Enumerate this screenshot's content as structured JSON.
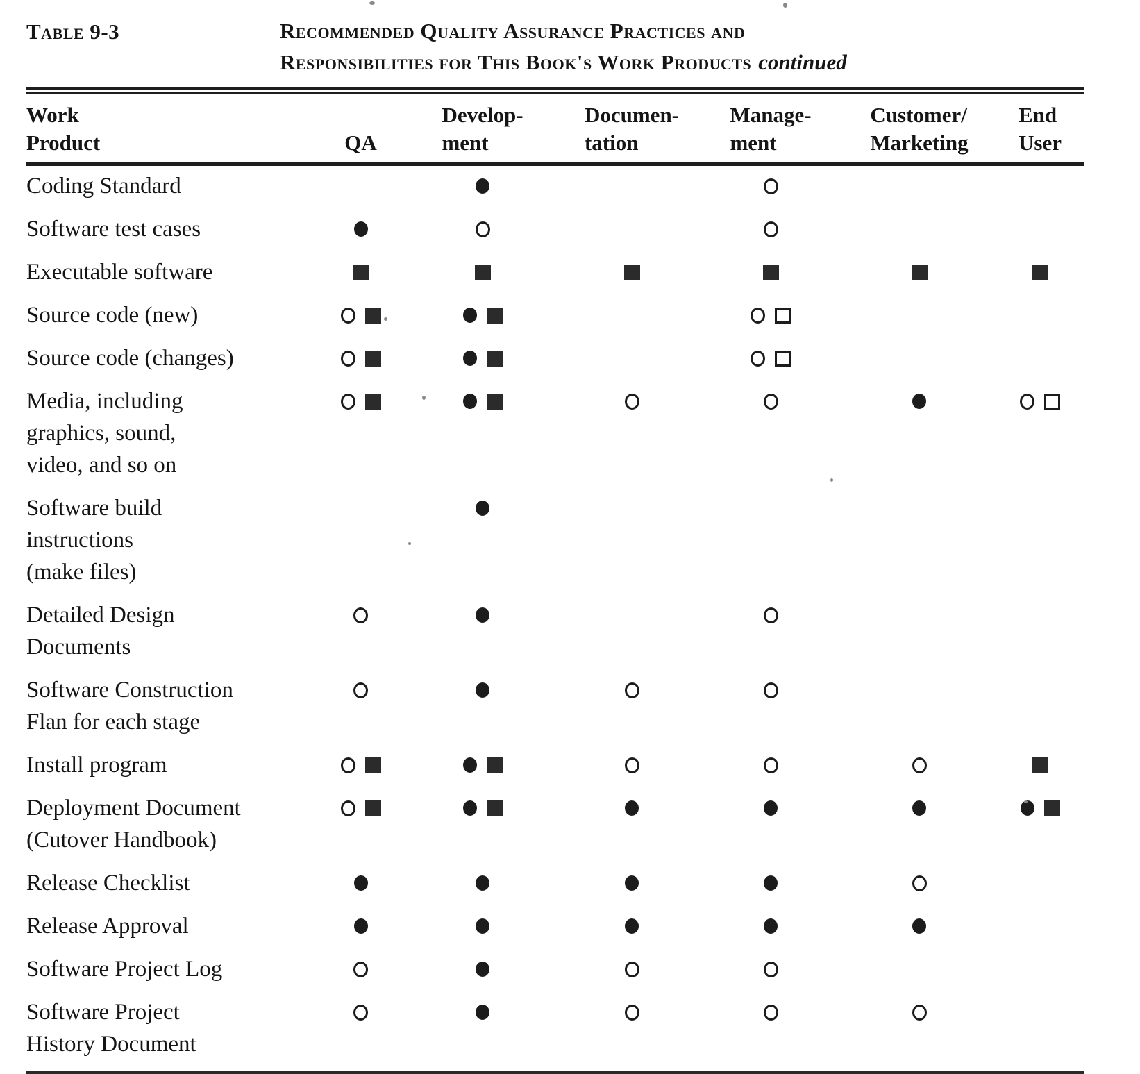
{
  "page": {
    "table_label": "Table 9-3",
    "title_line1": "Recommended Quality Assurance Practices and",
    "title_line2": "Responsibilities for This Book's Work Products",
    "continued_note": "continued"
  },
  "header": {
    "columns": [
      {
        "id": "product",
        "line1": "Work",
        "line2": "Product"
      },
      {
        "id": "qa",
        "line1": "",
        "line2": "QA"
      },
      {
        "id": "development",
        "line1": "Develop-",
        "line2": "ment"
      },
      {
        "id": "documentation",
        "line1": "Documen-",
        "line2": "tation"
      },
      {
        "id": "management",
        "line1": "Manage-",
        "line2": "ment"
      },
      {
        "id": "customer_marketing",
        "line1": "Customer/",
        "line2": "Marketing"
      },
      {
        "id": "end_user",
        "line1": "End",
        "line2": "User"
      }
    ]
  },
  "symbols": {
    "filled-circle": "●",
    "open-circle": "○",
    "filled-square": "■",
    "open-square": "□"
  },
  "rows": [
    {
      "product_lines": [
        "Coding Standard"
      ],
      "cells": {
        "qa": [],
        "development": [
          "filled-circle"
        ],
        "documentation": [],
        "management": [
          "open-circle"
        ],
        "customer_marketing": [],
        "end_user": []
      }
    },
    {
      "product_lines": [
        "Software test cases"
      ],
      "cells": {
        "qa": [
          "filled-circle"
        ],
        "development": [
          "open-circle"
        ],
        "documentation": [],
        "management": [
          "open-circle"
        ],
        "customer_marketing": [],
        "end_user": []
      }
    },
    {
      "product_lines": [
        "Executable software"
      ],
      "cells": {
        "qa": [
          "filled-square"
        ],
        "development": [
          "filled-square"
        ],
        "documentation": [
          "filled-square"
        ],
        "management": [
          "filled-square"
        ],
        "customer_marketing": [
          "filled-square"
        ],
        "end_user": [
          "filled-square"
        ]
      }
    },
    {
      "product_lines": [
        "Source code (new)"
      ],
      "cells": {
        "qa": [
          "open-circle",
          "filled-square"
        ],
        "development": [
          "filled-circle",
          "filled-square"
        ],
        "documentation": [],
        "management": [
          "open-circle",
          "open-square"
        ],
        "customer_marketing": [],
        "end_user": []
      }
    },
    {
      "product_lines": [
        "Source code (changes)"
      ],
      "cells": {
        "qa": [
          "open-circle",
          "filled-square"
        ],
        "development": [
          "filled-circle",
          "filled-square"
        ],
        "documentation": [],
        "management": [
          "open-circle",
          "open-square"
        ],
        "customer_marketing": [],
        "end_user": []
      }
    },
    {
      "product_lines": [
        "Media, including",
        "graphics, sound,",
        "video, and so on"
      ],
      "cells": {
        "qa": [
          "open-circle",
          "filled-square"
        ],
        "development": [
          "filled-circle",
          "filled-square"
        ],
        "documentation": [
          "open-circle"
        ],
        "management": [
          "open-circle"
        ],
        "customer_marketing": [
          "filled-circle"
        ],
        "end_user": [
          "open-circle",
          "open-square"
        ]
      }
    },
    {
      "product_lines": [
        "Software build",
        "instructions",
        "(make files)"
      ],
      "cells": {
        "qa": [],
        "development": [
          "filled-circle"
        ],
        "documentation": [],
        "management": [],
        "customer_marketing": [],
        "end_user": []
      }
    },
    {
      "product_lines": [
        "Detailed Design",
        "Documents"
      ],
      "cells": {
        "qa": [
          "open-circle"
        ],
        "development": [
          "filled-circle"
        ],
        "documentation": [],
        "management": [
          "open-circle"
        ],
        "customer_marketing": [],
        "end_user": []
      }
    },
    {
      "product_lines": [
        "Software Construction",
        "Flan for each stage"
      ],
      "cells": {
        "qa": [
          "open-circle"
        ],
        "development": [
          "filled-circle"
        ],
        "documentation": [
          "open-circle"
        ],
        "management": [
          "open-circle"
        ],
        "customer_marketing": [],
        "end_user": []
      }
    },
    {
      "product_lines": [
        "Install program"
      ],
      "cells": {
        "qa": [
          "open-circle",
          "filled-square"
        ],
        "development": [
          "filled-circle",
          "filled-square"
        ],
        "documentation": [
          "open-circle"
        ],
        "management": [
          "open-circle"
        ],
        "customer_marketing": [
          "open-circle"
        ],
        "end_user": [
          "filled-square"
        ]
      }
    },
    {
      "product_lines": [
        "Deployment Document",
        "(Cutover Handbook)"
      ],
      "cells": {
        "qa": [
          "open-circle",
          "filled-square"
        ],
        "development": [
          "filled-circle",
          "filled-square"
        ],
        "documentation": [
          "filled-circle"
        ],
        "management": [
          "filled-circle"
        ],
        "customer_marketing": [
          "filled-circle"
        ],
        "end_user": [
          "filled-circle",
          "filled-square"
        ]
      }
    },
    {
      "product_lines": [
        "Release Checklist"
      ],
      "cells": {
        "qa": [
          "filled-circle"
        ],
        "development": [
          "filled-circle"
        ],
        "documentation": [
          "filled-circle"
        ],
        "management": [
          "filled-circle"
        ],
        "customer_marketing": [
          "open-circle"
        ],
        "end_user": []
      }
    },
    {
      "product_lines": [
        "Release Approval"
      ],
      "cells": {
        "qa": [
          "filled-circle"
        ],
        "development": [
          "filled-circle"
        ],
        "documentation": [
          "filled-circle"
        ],
        "management": [
          "filled-circle"
        ],
        "customer_marketing": [
          "filled-circle"
        ],
        "end_user": []
      }
    },
    {
      "product_lines": [
        "Software Project Log"
      ],
      "cells": {
        "qa": [
          "open-circle"
        ],
        "development": [
          "filled-circle"
        ],
        "documentation": [
          "open-circle"
        ],
        "management": [
          "open-circle"
        ],
        "customer_marketing": [],
        "end_user": []
      }
    },
    {
      "product_lines": [
        "Software Project",
        "History Document"
      ],
      "cells": {
        "qa": [
          "open-circle"
        ],
        "development": [
          "filled-circle"
        ],
        "documentation": [
          "open-circle"
        ],
        "management": [
          "open-circle"
        ],
        "customer_marketing": [
          "open-circle"
        ],
        "end_user": []
      }
    }
  ]
}
